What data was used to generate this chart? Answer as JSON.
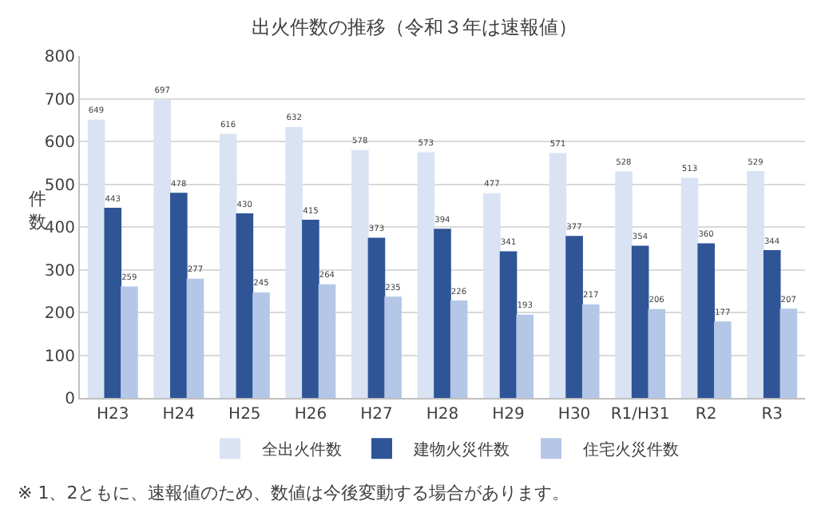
{
  "chart_data": {
    "type": "bar",
    "title": "出火件数の推移（令和３年は速報値）",
    "ylabel": "件数",
    "categories": [
      "H23",
      "H24",
      "H25",
      "H26",
      "H27",
      "H28",
      "H29",
      "H30",
      "R1/H31",
      "R2",
      "R3"
    ],
    "series": [
      {
        "name": "全出火件数",
        "color": "#dae3f3",
        "values": [
          649,
          697,
          616,
          632,
          578,
          573,
          477,
          571,
          528,
          513,
          529
        ]
      },
      {
        "name": "建物火災件数",
        "color": "#2f5597",
        "values": [
          443,
          478,
          430,
          415,
          373,
          394,
          341,
          377,
          354,
          360,
          344
        ]
      },
      {
        "name": "住宅火災件数",
        "color": "#b4c7e7",
        "values": [
          259,
          277,
          245,
          264,
          235,
          226,
          193,
          217,
          206,
          177,
          207
        ]
      }
    ],
    "ylim": [
      0,
      800
    ],
    "yticks": [
      0,
      100,
      200,
      300,
      400,
      500,
      600,
      700,
      800
    ],
    "grid": "y",
    "legend": "bottom",
    "data_labels": true,
    "annotations": [
      "※ 1、2ともに、速報値のため、数値は今後変動する場合があります。"
    ]
  }
}
